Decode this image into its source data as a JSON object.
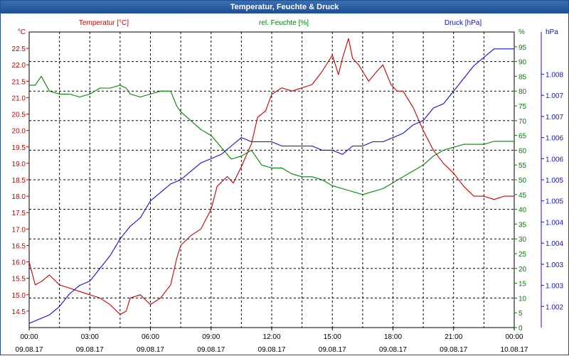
{
  "window": {
    "title": "Temperatur, Feuchte & Druck"
  },
  "colors": {
    "temperature": "#c00000",
    "humidity": "#008000",
    "pressure": "#1010c8",
    "title_bar": "#1d4e93"
  },
  "chart_data": {
    "type": "line",
    "title": "Temperatur, Feuchte & Druck",
    "grid": true,
    "x_range": [
      "09.08.17 00:00",
      "10.08.17 00:00"
    ],
    "x_ticks": [
      {
        "time": "00:00",
        "date": "09.08.17"
      },
      {
        "time": "03:00",
        "date": "09.08.17"
      },
      {
        "time": "06:00",
        "date": "09.08.17"
      },
      {
        "time": "09:00",
        "date": "09.08.17"
      },
      {
        "time": "12:00",
        "date": "09.08.17"
      },
      {
        "time": "15:00",
        "date": "09.08.17"
      },
      {
        "time": "18:00",
        "date": "09.08.17"
      },
      {
        "time": "21:00",
        "date": "09.08.17"
      },
      {
        "time": "00:00",
        "date": "10.08.17"
      }
    ],
    "axes": {
      "temperature": {
        "label": "Temperatur [°C]",
        "unit": "°C",
        "position": "left",
        "ylim": [
          14.0,
          23.0
        ],
        "ticks": [
          "14.5",
          "15.0",
          "15.5",
          "16.0",
          "16.5",
          "17.0",
          "17.5",
          "18.0",
          "18.5",
          "19.0",
          "19.5",
          "20.0",
          "20.5",
          "21.0",
          "21.5",
          "22.0",
          "22.5"
        ]
      },
      "humidity": {
        "label": "rel. Feuchte [%]",
        "unit": "%",
        "position": "right",
        "ylim": [
          0,
          100
        ],
        "ticks": [
          "0",
          "5",
          "10",
          "15",
          "20",
          "25",
          "30",
          "35",
          "40",
          "45",
          "50",
          "55",
          "60",
          "65",
          "70",
          "75",
          "80",
          "85",
          "90",
          "95"
        ]
      },
      "pressure": {
        "label": "Druck [hPa]",
        "unit": "hPa",
        "position": "right-outer",
        "ylim": [
          1001.5,
          1008.5
        ],
        "ticks": [
          "1.002",
          "1.003",
          "1.003",
          "1.004",
          "1.004",
          "1.005",
          "1.005",
          "1.006",
          "1.006",
          "1.007",
          "1.007",
          "1.008"
        ]
      }
    },
    "series": [
      {
        "name": "Temperatur [°C]",
        "axis": "temperature",
        "x": [
          0,
          0.3,
          0.6,
          1.0,
          1.5,
          2.0,
          2.5,
          3.0,
          3.5,
          4.0,
          4.5,
          4.8,
          5.0,
          5.5,
          6.0,
          6.5,
          7.0,
          7.3,
          7.5,
          8.0,
          8.5,
          9.0,
          9.3,
          9.8,
          10.1,
          10.5,
          11.0,
          11.3,
          11.7,
          12.0,
          12.5,
          13.0,
          13.5,
          14.0,
          14.5,
          15.0,
          15.3,
          15.5,
          15.8,
          16.0,
          16.3,
          16.8,
          17.2,
          17.5,
          17.9,
          18.2,
          18.5,
          19.0,
          19.5,
          20.0,
          20.5,
          21.0,
          21.5,
          22.0,
          22.5,
          23.0,
          23.5,
          24.0
        ],
        "values": [
          16.0,
          15.3,
          15.4,
          15.6,
          15.3,
          15.2,
          15.1,
          15.0,
          14.9,
          14.7,
          14.4,
          14.5,
          14.9,
          15.0,
          14.7,
          14.9,
          15.3,
          16.1,
          16.5,
          16.8,
          17.0,
          17.6,
          18.3,
          18.6,
          18.4,
          18.9,
          19.6,
          20.4,
          20.6,
          21.1,
          21.3,
          21.2,
          21.3,
          21.4,
          21.8,
          22.3,
          21.7,
          22.2,
          22.8,
          22.2,
          22.0,
          21.5,
          21.8,
          22.0,
          21.4,
          21.2,
          21.2,
          20.7,
          20.0,
          19.4,
          19.0,
          18.7,
          18.3,
          18.0,
          18.0,
          17.9,
          18.0,
          18.0
        ]
      },
      {
        "name": "rel. Feuchte [%]",
        "axis": "humidity",
        "x": [
          0,
          0.3,
          0.6,
          1.0,
          1.5,
          2.0,
          2.5,
          3.0,
          3.5,
          4.0,
          4.5,
          4.8,
          5.0,
          5.5,
          6.0,
          6.5,
          7.0,
          7.3,
          7.5,
          8.0,
          8.5,
          9.0,
          9.5,
          10.0,
          10.5,
          11.0,
          11.5,
          12.0,
          12.5,
          13.0,
          13.5,
          14.0,
          14.5,
          15.0,
          15.5,
          16.0,
          16.5,
          17.0,
          17.5,
          18.0,
          18.5,
          19.0,
          19.5,
          20.0,
          20.5,
          21.0,
          21.5,
          22.0,
          22.5,
          23.0,
          23.5,
          24.0
        ],
        "values": [
          82,
          82,
          85,
          80,
          79,
          79,
          78,
          79,
          81,
          81,
          82,
          81,
          79,
          78,
          79,
          80,
          80,
          75,
          73,
          70,
          67,
          65,
          61,
          57,
          58,
          60,
          55,
          54,
          54,
          52,
          51,
          51,
          50,
          48,
          47,
          46,
          45,
          46,
          47,
          49,
          51,
          53,
          55,
          58,
          60,
          61,
          62,
          62,
          62,
          63,
          63,
          63
        ]
      },
      {
        "name": "Druck [hPa]",
        "axis": "pressure",
        "x": [
          0,
          0.5,
          1.0,
          1.5,
          2.0,
          2.5,
          3.0,
          3.5,
          4.0,
          4.5,
          5.0,
          5.5,
          6.0,
          6.5,
          7.0,
          7.5,
          8.0,
          8.5,
          9.0,
          9.5,
          10.0,
          10.5,
          11.0,
          11.5,
          12.0,
          12.5,
          13.0,
          13.5,
          14.0,
          14.5,
          15.0,
          15.5,
          16.0,
          16.5,
          17.0,
          17.5,
          18.0,
          18.5,
          19.0,
          19.5,
          20.0,
          20.5,
          21.0,
          21.5,
          22.0,
          22.5,
          23.0,
          23.5,
          24.0
        ],
        "values": [
          1001.6,
          1001.7,
          1001.8,
          1002.0,
          1002.3,
          1002.5,
          1002.6,
          1002.9,
          1003.2,
          1003.6,
          1003.9,
          1004.1,
          1004.5,
          1004.7,
          1004.9,
          1005.0,
          1005.2,
          1005.4,
          1005.5,
          1005.6,
          1005.8,
          1006.0,
          1005.9,
          1005.9,
          1005.9,
          1005.8,
          1005.8,
          1005.8,
          1005.8,
          1005.7,
          1005.7,
          1005.6,
          1005.8,
          1005.8,
          1005.9,
          1005.9,
          1006.0,
          1006.1,
          1006.3,
          1006.4,
          1006.7,
          1006.8,
          1007.1,
          1007.4,
          1007.7,
          1007.9,
          1008.1,
          1008.1,
          1008.1
        ]
      }
    ]
  }
}
